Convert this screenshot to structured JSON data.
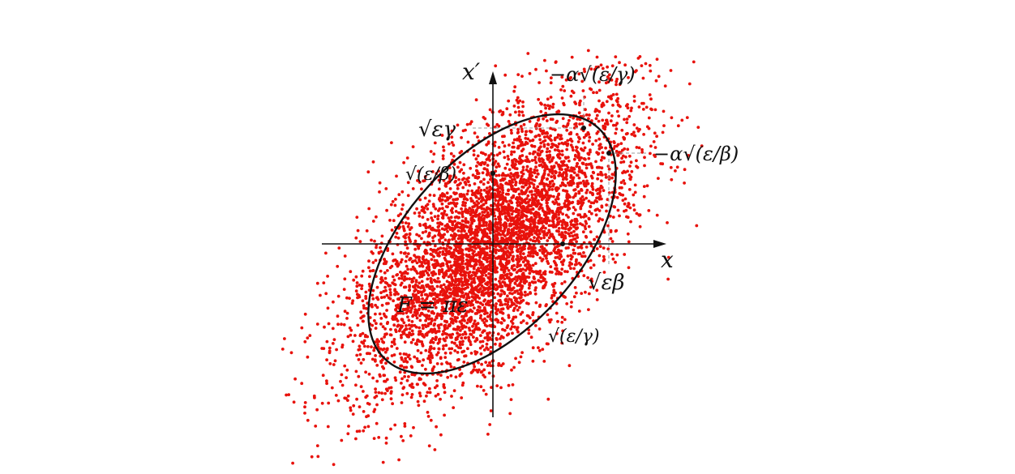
{
  "colors": {
    "particles": "#e8120c",
    "ellipse": "#111111",
    "axes": "#111111",
    "guides": "#9a9a9a"
  },
  "axes": {
    "x_label": "x",
    "y_label": "x′"
  },
  "annotations": {
    "area": "F = πε",
    "top_max_y": "√εγ",
    "top_max_x": "−α√(ε/γ)",
    "right_max_y": "−α√(ε/β)",
    "right_max_x": "√εβ",
    "y_intercept": "√(ε/β)",
    "x_intercept": "√(ε/γ)"
  }
}
